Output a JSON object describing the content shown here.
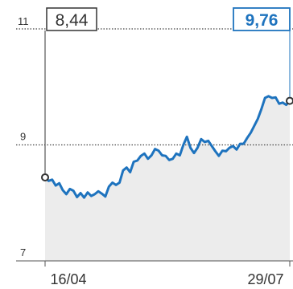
{
  "chart_data": {
    "type": "area",
    "ylim": [
      7,
      11
    ],
    "y_ticks": [
      {
        "value": 11,
        "label": "11"
      },
      {
        "value": 9,
        "label": "9"
      },
      {
        "value": 7,
        "label": "7"
      }
    ],
    "x_ticks": [
      "16/04",
      "29/07"
    ],
    "start_value_label": "8,44",
    "end_value_label": "9,76",
    "series": [
      {
        "values": [
          8.44,
          8.38,
          8.4,
          8.3,
          8.34,
          8.22,
          8.15,
          8.24,
          8.21,
          8.1,
          8.17,
          8.09,
          8.18,
          8.12,
          8.15,
          8.2,
          8.16,
          8.11,
          8.28,
          8.35,
          8.31,
          8.35,
          8.56,
          8.61,
          8.53,
          8.71,
          8.73,
          8.81,
          8.85,
          8.76,
          8.82,
          8.93,
          8.9,
          8.82,
          8.81,
          8.74,
          8.76,
          8.85,
          8.82,
          9.0,
          9.14,
          8.95,
          8.86,
          8.95,
          9.1,
          9.05,
          9.07,
          8.98,
          8.89,
          8.81,
          8.9,
          8.89,
          8.95,
          8.98,
          8.92,
          9.02,
          9.02,
          9.12,
          9.21,
          9.33,
          9.45,
          9.62,
          9.81,
          9.84,
          9.81,
          9.82,
          9.71,
          9.73,
          9.69,
          9.76
        ]
      }
    ],
    "colors": {
      "line": "#1e73be",
      "fill": "#ececec",
      "gridline": "#444444",
      "end_marker": "#1e73be",
      "start_marker": "#333333"
    }
  }
}
